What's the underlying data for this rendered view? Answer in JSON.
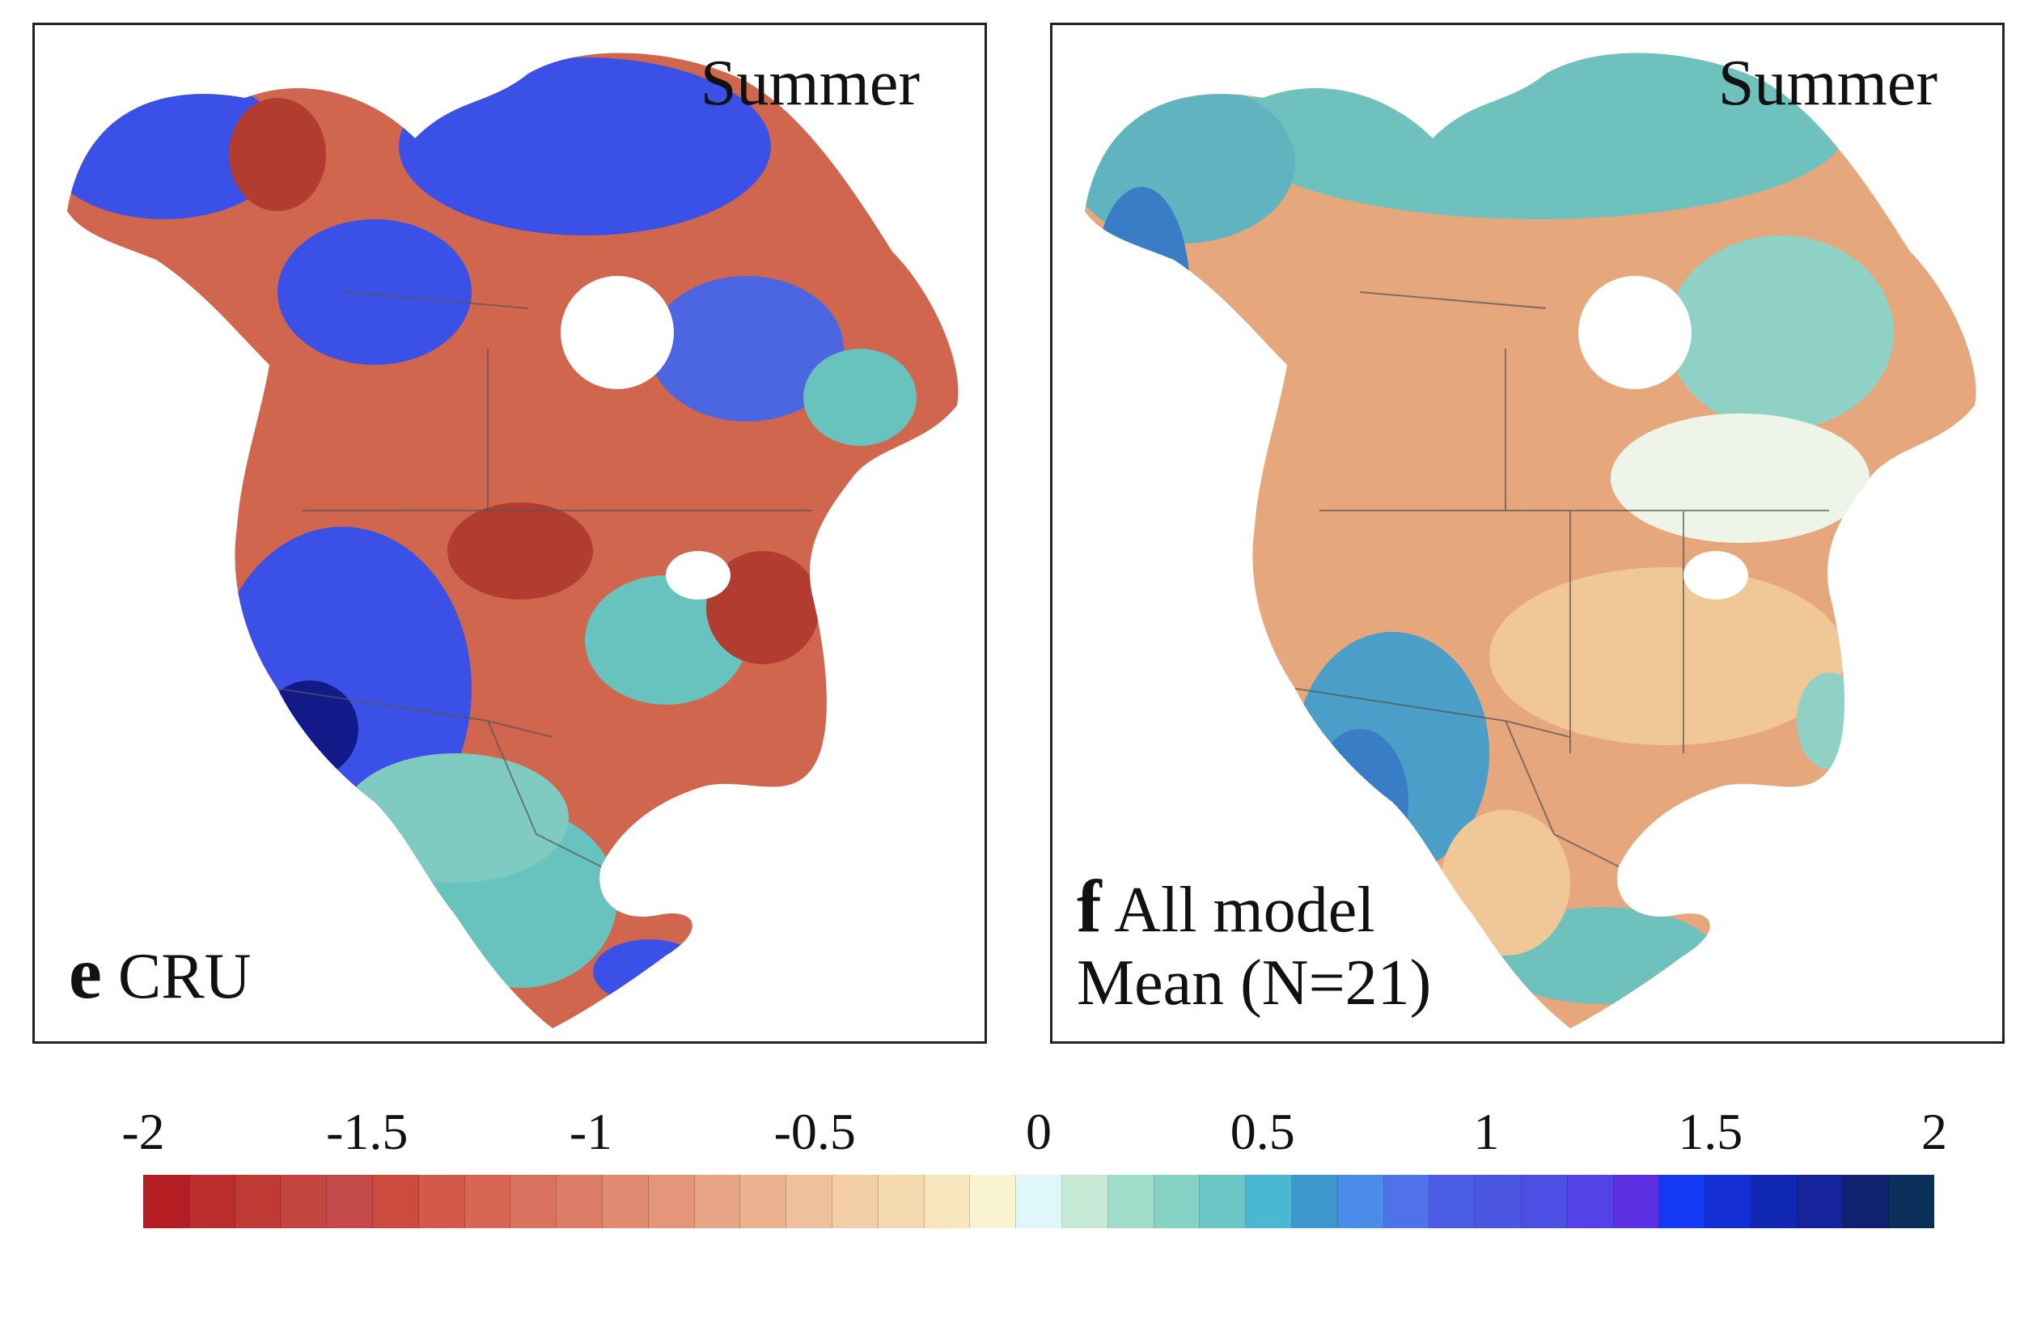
{
  "panels": [
    {
      "id": "e",
      "season": "Summer",
      "letter": "e",
      "label_lines": [
        "CRU"
      ]
    },
    {
      "id": "f",
      "season": "Summer",
      "letter": "f",
      "label_lines": [
        "All model",
        "Mean (N=21)"
      ]
    }
  ],
  "colorbar": {
    "ticks": [
      "-2",
      "-1.5",
      "-1",
      "-0.5",
      "0",
      "0.5",
      "1",
      "1.5",
      "2"
    ],
    "range": [
      -2,
      2
    ],
    "colors": [
      "#b41e22",
      "#bb2d2c",
      "#c03a35",
      "#c4453f",
      "#c34a48",
      "#cc4b3f",
      "#d35a49",
      "#d76754",
      "#da7260",
      "#dc7d68",
      "#df8a71",
      "#e3967a",
      "#e7a486",
      "#ebb291",
      "#efc09d",
      "#f2cda7",
      "#f5dab1",
      "#f8e6bf",
      "#faf3d2",
      "#dff7fb",
      "#c6ead6",
      "#9fdcc9",
      "#85d2c4",
      "#6cc6c6",
      "#4bb8d1",
      "#3d97cd",
      "#4b8bea",
      "#4f72ea",
      "#4a5ce4",
      "#4b57e2",
      "#4d4ee3",
      "#5343e6",
      "#5d2fe2",
      "#1438f3",
      "#132fd4",
      "#1128b4",
      "#15249a",
      "#10226f",
      "#0a2f5a"
    ]
  },
  "map_colors": {
    "e_blue": "#3b50e6",
    "e_darkblue": "#121a8a",
    "e_red": "#d0664e",
    "e_darkred": "#b33c30",
    "e_teal": "#68c2bd",
    "f_orange": "#e6a77c",
    "f_lightorange": "#f0c898",
    "f_teal": "#6ec1bc",
    "f_blue": "#3a7dc7",
    "f_pale": "#eef5e8",
    "boundary": "#555555",
    "lake": "#ffffff"
  }
}
